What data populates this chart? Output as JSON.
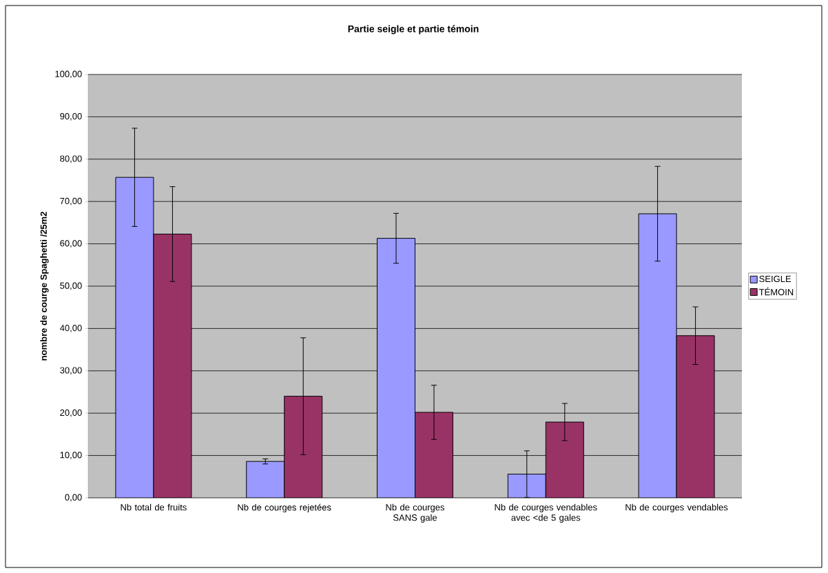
{
  "chart_data": {
    "type": "bar",
    "title": "Partie seigle et partie témoin",
    "ylabel": "nombre de courge Spaghetti /25m2",
    "categories": [
      "Nb total de fruits",
      "Nb de courges rejetées",
      "Nb de courges SANS gale",
      "Nb de courges vendables avec <de 5 gales",
      "Nb de courges vendables"
    ],
    "series": [
      {
        "name": "SEIGLE",
        "color": "#9999ff",
        "values": [
          75.7,
          8.6,
          61.3,
          5.6,
          67.1
        ],
        "errors": [
          11.6,
          0.6,
          5.9,
          5.5,
          11.2
        ]
      },
      {
        "name": "TÉMOIN",
        "color": "#993366",
        "values": [
          62.3,
          24.0,
          20.2,
          17.9,
          38.3
        ],
        "errors": [
          11.2,
          13.8,
          6.4,
          4.4,
          6.8
        ]
      }
    ],
    "ylim": [
      0,
      100
    ],
    "yticks": [
      {
        "value": 0,
        "label": "0,00"
      },
      {
        "value": 10,
        "label": "10,00"
      },
      {
        "value": 20,
        "label": "20,00"
      },
      {
        "value": 30,
        "label": "30,00"
      },
      {
        "value": 40,
        "label": "40,00"
      },
      {
        "value": 50,
        "label": "50,00"
      },
      {
        "value": 60,
        "label": "60,00"
      },
      {
        "value": 70,
        "label": "70,00"
      },
      {
        "value": 80,
        "label": "80,00"
      },
      {
        "value": 90,
        "label": "90,00"
      },
      {
        "value": 100,
        "label": "100,00"
      }
    ],
    "grid": "y",
    "legend": "right"
  }
}
